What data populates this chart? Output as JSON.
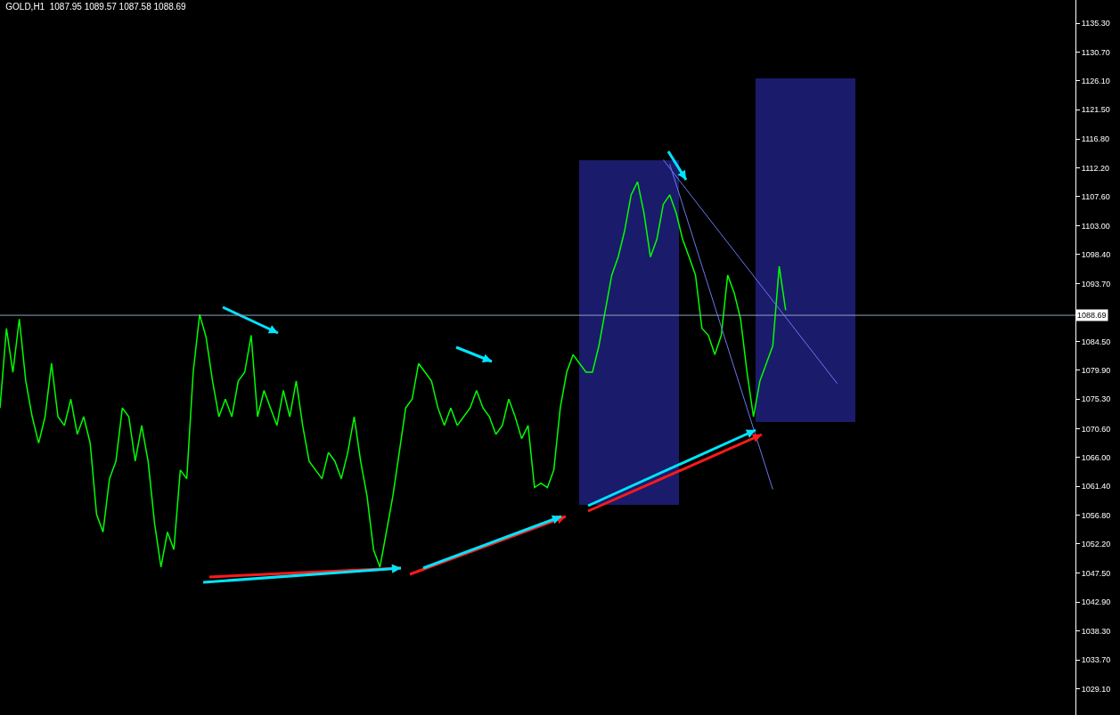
{
  "chart_data": {
    "type": "line",
    "title": "GOLD,H1  1087.95 1089.57 1087.58 1088.69",
    "tick_labels": "y",
    "grid": false,
    "marker": "none",
    "ylim": [
      1024.9,
      1139.0
    ],
    "yticks": [
      {
        "value": 1029.1,
        "label": "1029.10"
      },
      {
        "value": 1033.7,
        "label": "1033.70"
      },
      {
        "value": 1038.3,
        "label": "1038.30"
      },
      {
        "value": 1042.9,
        "label": "1042.90"
      },
      {
        "value": 1047.5,
        "label": "1047.50"
      },
      {
        "value": 1052.2,
        "label": "1052.20"
      },
      {
        "value": 1056.8,
        "label": "1056.80"
      },
      {
        "value": 1061.4,
        "label": "1061.40"
      },
      {
        "value": 1066.0,
        "label": "1066.00"
      },
      {
        "value": 1070.6,
        "label": "1070.60"
      },
      {
        "value": 1075.3,
        "label": "1075.30"
      },
      {
        "value": 1079.9,
        "label": "1079.90"
      },
      {
        "value": 1084.5,
        "label": "1084.50"
      },
      {
        "value": 1093.7,
        "label": "1093.70"
      },
      {
        "value": 1098.4,
        "label": "1098.40"
      },
      {
        "value": 1103.0,
        "label": "1103.00"
      },
      {
        "value": 1107.6,
        "label": "1107.60"
      },
      {
        "value": 1112.2,
        "label": "1112.20"
      },
      {
        "value": 1116.8,
        "label": "1116.80"
      },
      {
        "value": 1121.5,
        "label": "1121.50"
      },
      {
        "value": 1126.1,
        "label": "1126.10"
      },
      {
        "value": 1130.7,
        "label": "1130.70"
      },
      {
        "value": 1135.3,
        "label": "1135.30"
      }
    ],
    "categories": [
      null,
      null,
      null,
      null,
      null,
      null,
      null,
      null,
      null,
      null,
      null,
      null,
      null,
      null,
      null,
      null,
      null,
      null,
      null,
      null,
      null,
      null,
      null,
      null,
      null,
      null,
      null,
      null,
      null,
      null,
      null,
      null,
      null,
      null,
      null,
      null,
      null,
      null,
      null,
      null,
      null,
      null,
      null,
      null,
      null,
      null,
      null,
      null,
      null,
      null,
      null,
      null,
      null,
      null,
      null,
      null,
      null,
      null,
      null,
      null,
      null,
      null,
      null,
      null,
      null,
      null,
      null,
      null,
      null,
      null,
      null,
      null,
      null,
      null,
      null,
      null,
      null,
      null,
      null,
      null,
      null,
      null,
      null,
      null,
      null,
      null,
      null,
      null,
      null,
      null,
      null,
      null,
      null,
      null,
      null,
      null,
      null,
      null,
      null,
      null,
      null,
      null,
      null,
      null,
      null,
      null,
      null,
      null,
      null,
      null,
      null,
      null,
      null,
      null,
      null,
      null,
      null,
      null,
      null,
      null,
      null,
      null,
      null,
      null,
      null,
      null,
      null,
      null,
      null,
      null,
      null,
      null,
      null,
      null,
      null,
      null,
      null,
      null,
      null,
      null,
      null,
      null,
      null,
      null,
      null,
      null,
      null,
      null,
      null,
      null,
      null,
      null,
      null,
      null,
      null,
      null,
      null,
      null,
      null,
      null,
      null,
      null,
      null,
      null,
      null,
      null,
      null,
      null
    ],
    "series": [
      {
        "color": "#00ff00",
        "values": [
          1073.9,
          1086.6,
          1079.6,
          1088.1,
          1078.2,
          1072.5,
          1068.3,
          1072.5,
          1081.0,
          1072.5,
          1071.1,
          1075.3,
          1069.7,
          1072.5,
          1068.3,
          1056.9,
          1054.1,
          1062.6,
          1065.4,
          1073.9,
          1072.5,
          1065.4,
          1071.1,
          1065.4,
          1055.5,
          1048.5,
          1054.1,
          1051.3,
          1064.0,
          1062.6,
          1079.6,
          1088.8,
          1085.2,
          1078.2,
          1072.5,
          1075.3,
          1072.5,
          1078.2,
          1079.6,
          1085.5,
          1072.5,
          1076.7,
          1073.9,
          1071.1,
          1076.7,
          1072.5,
          1078.2,
          1071.1,
          1065.4,
          1064.0,
          1062.6,
          1066.8,
          1065.4,
          1062.6,
          1066.8,
          1072.5,
          1065.4,
          1059.8,
          1051.3,
          1048.5,
          1054.1,
          1059.8,
          1066.8,
          1073.9,
          1075.3,
          1081.0,
          1079.6,
          1078.2,
          1073.9,
          1071.1,
          1073.9,
          1071.1,
          1072.5,
          1073.9,
          1076.7,
          1073.9,
          1072.5,
          1069.7,
          1071.1,
          1075.3,
          1072.5,
          1069.0,
          1071.1,
          1061.2,
          1061.9,
          1061.2,
          1064.0,
          1073.9,
          1079.6,
          1082.4,
          1081.0,
          1079.6,
          1079.6,
          1083.8,
          1089.5,
          1095.1,
          1098.0,
          1102.2,
          1107.9,
          1110.0,
          1105.0,
          1098.0,
          1100.8,
          1106.4,
          1107.9,
          1105.0,
          1100.8,
          1098.0,
          1095.1,
          1086.6,
          1085.5,
          1082.4,
          1085.5,
          1095.1,
          1092.3,
          1088.1,
          1079.6,
          1072.5,
          1078.2,
          1081.0,
          1083.8,
          1096.5,
          1089.5,
          null,
          null,
          null,
          null,
          null,
          null,
          null,
          null,
          null,
          null,
          null,
          null,
          null,
          null,
          null,
          null,
          null,
          null,
          null,
          null,
          null,
          null,
          null,
          null,
          null,
          null,
          null,
          null,
          null,
          null,
          null,
          null,
          null,
          null,
          null,
          null,
          null,
          null,
          null,
          null,
          null,
          null,
          null,
          null,
          null
        ]
      },
      {
        "color": "#6a78f0",
        "values": [
          null,
          null,
          null,
          null,
          null,
          null,
          null,
          null,
          null,
          null,
          null,
          null,
          null,
          null,
          null,
          null,
          null,
          null,
          null,
          null,
          null,
          null,
          null,
          null,
          null,
          null,
          null,
          null,
          null,
          null,
          null,
          null,
          null,
          null,
          null,
          null,
          null,
          null,
          null,
          null,
          null,
          null,
          null,
          null,
          null,
          null,
          null,
          null,
          null,
          null,
          null,
          null,
          null,
          null,
          null,
          null,
          null,
          null,
          null,
          null,
          null,
          null,
          null,
          null,
          null,
          null,
          null,
          null,
          null,
          null,
          null,
          null,
          null,
          null,
          null,
          null,
          null,
          null,
          null,
          null,
          null,
          null,
          null,
          null,
          null,
          null,
          null,
          null,
          null,
          null,
          null,
          null,
          null,
          null,
          null,
          null,
          null,
          null,
          null,
          null,
          null,
          null,
          null,
          1113.5,
          null,
          null,
          null,
          null,
          null,
          null,
          null,
          null,
          null,
          null,
          null,
          null,
          null,
          null,
          null,
          null,
          null,
          null,
          null,
          null,
          null,
          null,
          null,
          null,
          null,
          null,
          1077.8,
          null,
          null,
          null,
          null,
          null,
          null,
          null,
          null,
          null,
          null,
          null,
          null,
          null,
          null,
          null,
          null,
          null,
          null,
          null,
          null,
          null,
          null,
          null,
          null,
          null,
          null,
          null,
          null,
          null,
          null,
          null,
          null,
          null,
          null,
          null,
          null,
          null
        ]
      },
      {
        "color": "#6a78f0",
        "values": [
          null,
          null,
          null,
          null,
          null,
          null,
          null,
          null,
          null,
          null,
          null,
          null,
          null,
          null,
          null,
          null,
          null,
          null,
          null,
          null,
          null,
          null,
          null,
          null,
          null,
          null,
          null,
          null,
          null,
          null,
          null,
          null,
          null,
          null,
          null,
          null,
          null,
          null,
          null,
          null,
          null,
          null,
          null,
          null,
          null,
          null,
          null,
          null,
          null,
          null,
          null,
          null,
          null,
          null,
          null,
          null,
          null,
          null,
          null,
          null,
          null,
          null,
          null,
          null,
          null,
          null,
          null,
          null,
          null,
          null,
          null,
          null,
          null,
          null,
          null,
          null,
          null,
          null,
          null,
          null,
          null,
          null,
          null,
          null,
          null,
          null,
          null,
          null,
          null,
          null,
          null,
          null,
          null,
          null,
          null,
          null,
          null,
          null,
          null,
          null,
          null,
          null,
          null,
          null,
          1112.8,
          null,
          null,
          null,
          null,
          null,
          null,
          null,
          null,
          null,
          null,
          null,
          null,
          null,
          null,
          null,
          1060.9,
          null,
          null,
          null,
          null,
          null,
          null,
          null,
          null,
          null,
          null,
          null,
          null,
          null,
          null,
          null,
          null,
          null,
          null,
          null,
          null,
          null,
          null,
          null,
          null,
          null,
          null,
          null,
          null,
          null,
          null,
          null,
          null,
          null,
          null,
          null,
          null,
          null,
          null,
          null,
          null,
          null,
          null,
          null,
          null,
          null,
          null,
          null
        ]
      }
    ],
    "ref_lines": [
      {
        "axis": "y",
        "value": 1088.69,
        "label": "1088.69",
        "color": "#8fa3b8"
      }
    ]
  }
}
